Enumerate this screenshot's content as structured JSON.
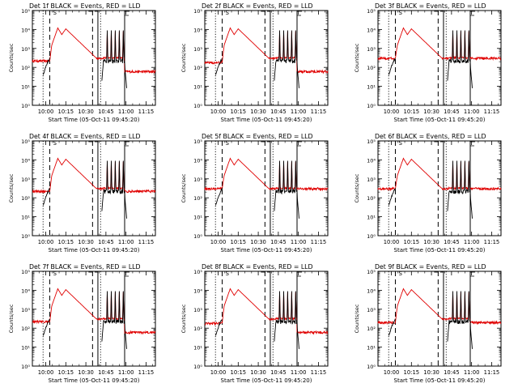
{
  "figure": {
    "xlabel": "Start Time (05-Oct-11 09:45:20)",
    "ylabel": "Counts/sec",
    "x_tick_labels": [
      "10:00",
      "10:15",
      "10:30",
      "10:45",
      "11:00",
      "11:15"
    ],
    "y_tick_labels": [
      "10⁰",
      "10¹",
      "10²",
      "10³",
      "10⁴",
      "10⁵"
    ],
    "colors": {
      "events": "#000000",
      "lld": "#e00000",
      "background": "#ffffff"
    }
  },
  "chart_data": [
    {
      "type": "line",
      "title": "Det 1f BLACK = Events, RED = LLD",
      "panel": "1f",
      "ylog": true,
      "ylim": [
        1,
        100000
      ],
      "xlim": [
        "09:50",
        "11:22"
      ],
      "grid": false,
      "series": [
        {
          "name": "Events",
          "color": "#000000"
        },
        {
          "name": "LLD",
          "color": "#e00000"
        }
      ],
      "markers": {
        "dotted": [
          "09:58",
          "10:41"
        ],
        "dashed": [
          "10:03",
          "10:35"
        ],
        "solid": [
          "10:39",
          "10:59"
        ]
      },
      "flare": {
        "start": "10:03",
        "peak1": "10:09",
        "peak2": "10:15",
        "end": "10:35",
        "peak_level": 12000
      },
      "spikes": [
        "10:46",
        "10:49",
        "10:52",
        "10:55",
        "10:58"
      ],
      "lld_base": 220,
      "lld_after": 60
    },
    {
      "type": "line",
      "title": "Det 2f BLACK = Events, RED = LLD",
      "panel": "2f",
      "ylog": true,
      "ylim": [
        1,
        100000
      ],
      "xlim": [
        "09:50",
        "11:22"
      ],
      "grid": false,
      "series": [
        {
          "name": "Events",
          "color": "#000000"
        },
        {
          "name": "LLD",
          "color": "#e00000"
        }
      ],
      "markers": {
        "dotted": [
          "09:58",
          "10:41"
        ],
        "dashed": [
          "10:03",
          "10:35"
        ],
        "solid": [
          "10:39",
          "10:59"
        ]
      },
      "flare": {
        "start": "10:03",
        "peak1": "10:09",
        "peak2": "10:15",
        "end": "10:35",
        "peak_level": 12000
      },
      "spikes": [
        "10:46",
        "10:49",
        "10:52",
        "10:55",
        "10:58"
      ],
      "lld_base": 180,
      "lld_after": 60
    },
    {
      "type": "line",
      "title": "Det 3f BLACK = Events, RED = LLD",
      "panel": "3f",
      "ylog": true,
      "ylim": [
        1,
        100000
      ],
      "xlim": [
        "09:50",
        "11:22"
      ],
      "grid": false,
      "series": [
        {
          "name": "Events",
          "color": "#000000"
        },
        {
          "name": "LLD",
          "color": "#e00000"
        }
      ],
      "markers": {
        "dotted": [
          "09:58",
          "10:41"
        ],
        "dashed": [
          "10:03",
          "10:35"
        ],
        "solid": [
          "10:39",
          "10:59"
        ]
      },
      "flare": {
        "start": "10:03",
        "peak1": "10:09",
        "peak2": "10:15",
        "end": "10:35",
        "peak_level": 12000
      },
      "spikes": [
        "10:46",
        "10:49",
        "10:52",
        "10:55",
        "10:58"
      ],
      "lld_base": 300,
      "lld_after": 300
    },
    {
      "type": "line",
      "title": "Det 4f BLACK = Events, RED = LLD",
      "panel": "4f",
      "ylog": true,
      "ylim": [
        1,
        100000
      ],
      "xlim": [
        "09:50",
        "11:22"
      ],
      "grid": false,
      "series": [
        {
          "name": "Events",
          "color": "#000000"
        },
        {
          "name": "LLD",
          "color": "#e00000"
        }
      ],
      "markers": {
        "dotted": [
          "09:58",
          "10:41"
        ],
        "dashed": [
          "10:03",
          "10:35"
        ],
        "solid": [
          "10:39",
          "10:59"
        ]
      },
      "flare": {
        "start": "10:03",
        "peak1": "10:09",
        "peak2": "10:15",
        "end": "10:35",
        "peak_level": 12000
      },
      "spikes": [
        "10:46",
        "10:49",
        "10:52",
        "10:55",
        "10:58"
      ],
      "lld_base": 220,
      "lld_after": 220
    },
    {
      "type": "line",
      "title": "Det 5f BLACK = Events, RED = LLD",
      "panel": "5f",
      "ylog": true,
      "ylim": [
        1,
        100000
      ],
      "xlim": [
        "09:50",
        "11:22"
      ],
      "grid": false,
      "series": [
        {
          "name": "Events",
          "color": "#000000"
        },
        {
          "name": "LLD",
          "color": "#e00000"
        }
      ],
      "markers": {
        "dotted": [
          "09:58",
          "10:41"
        ],
        "dashed": [
          "10:03",
          "10:35"
        ],
        "solid": [
          "10:39",
          "10:59"
        ]
      },
      "flare": {
        "start": "10:03",
        "peak1": "10:09",
        "peak2": "10:15",
        "end": "10:35",
        "peak_level": 12000
      },
      "spikes": [
        "10:46",
        "10:49",
        "10:52",
        "10:55",
        "10:58"
      ],
      "lld_base": 300,
      "lld_after": 300
    },
    {
      "type": "line",
      "title": "Det 6f BLACK = Events, RED = LLD",
      "panel": "6f",
      "ylog": true,
      "ylim": [
        1,
        100000
      ],
      "xlim": [
        "09:50",
        "11:22"
      ],
      "grid": false,
      "series": [
        {
          "name": "Events",
          "color": "#000000"
        },
        {
          "name": "LLD",
          "color": "#e00000"
        }
      ],
      "markers": {
        "dotted": [
          "09:58",
          "10:41"
        ],
        "dashed": [
          "10:03",
          "10:35"
        ],
        "solid": [
          "10:39",
          "10:59"
        ]
      },
      "flare": {
        "start": "10:03",
        "peak1": "10:09",
        "peak2": "10:15",
        "end": "10:35",
        "peak_level": 12000
      },
      "spikes": [
        "10:46",
        "10:49",
        "10:52",
        "10:55",
        "10:58"
      ],
      "lld_base": 300,
      "lld_after": 300
    },
    {
      "type": "line",
      "title": "Det 7f BLACK = Events, RED = LLD",
      "panel": "7f",
      "ylog": true,
      "ylim": [
        1,
        100000
      ],
      "xlim": [
        "09:50",
        "11:22"
      ],
      "grid": false,
      "series": [
        {
          "name": "Events",
          "color": "#000000"
        },
        {
          "name": "LLD",
          "color": "#e00000"
        }
      ],
      "markers": {
        "dotted": [
          "09:58",
          "10:41"
        ],
        "dashed": [
          "10:03",
          "10:35"
        ],
        "solid": [
          "10:39",
          "10:59"
        ]
      },
      "flare": {
        "start": "10:03",
        "peak1": "10:09",
        "peak2": "10:15",
        "end": "10:35",
        "peak_level": 12000
      },
      "spikes": [
        "10:46",
        "10:49",
        "10:52",
        "10:55",
        "10:58"
      ],
      "lld_base": 220,
      "lld_after": 60
    },
    {
      "type": "line",
      "title": "Det 8f BLACK = Events, RED = LLD",
      "panel": "8f",
      "ylog": true,
      "ylim": [
        1,
        100000
      ],
      "xlim": [
        "09:50",
        "11:22"
      ],
      "grid": false,
      "series": [
        {
          "name": "Events",
          "color": "#000000"
        },
        {
          "name": "LLD",
          "color": "#e00000"
        }
      ],
      "markers": {
        "dotted": [
          "09:58",
          "10:41"
        ],
        "dashed": [
          "10:03",
          "10:35"
        ],
        "solid": [
          "10:39",
          "10:59"
        ]
      },
      "flare": {
        "start": "10:03",
        "peak1": "10:09",
        "peak2": "10:15",
        "end": "10:35",
        "peak_level": 12000
      },
      "spikes": [
        "10:46",
        "10:49",
        "10:52",
        "10:55",
        "10:58"
      ],
      "lld_base": 180,
      "lld_after": 60
    },
    {
      "type": "line",
      "title": "Det 9f BLACK = Events, RED = LLD",
      "panel": "9f",
      "ylog": true,
      "ylim": [
        1,
        100000
      ],
      "xlim": [
        "09:50",
        "11:22"
      ],
      "grid": false,
      "series": [
        {
          "name": "Events",
          "color": "#000000"
        },
        {
          "name": "LLD",
          "color": "#e00000"
        }
      ],
      "markers": {
        "dotted": [
          "09:58",
          "10:41"
        ],
        "dashed": [
          "10:03",
          "10:35"
        ],
        "solid": [
          "10:39",
          "10:59"
        ]
      },
      "flare": {
        "start": "10:03",
        "peak1": "10:09",
        "peak2": "10:15",
        "end": "10:35",
        "peak_level": 12000
      },
      "spikes": [
        "10:46",
        "10:49",
        "10:52",
        "10:55",
        "10:58"
      ],
      "lld_base": 200,
      "lld_after": 200
    }
  ]
}
